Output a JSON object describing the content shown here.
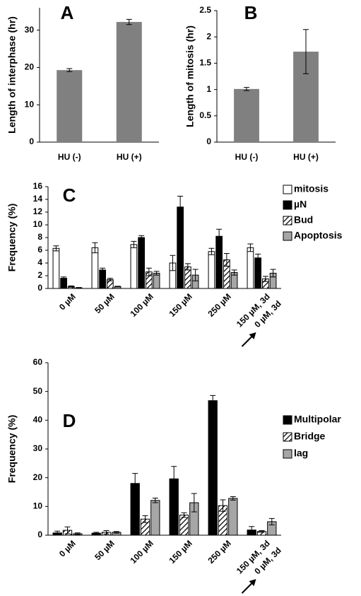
{
  "chart_data": [
    {
      "type": "bar",
      "title": "A",
      "y_label": "Length of interphase (hr)",
      "categories": [
        "HU (-)",
        "HU (+)"
      ],
      "series": [
        {
          "name": null,
          "color": "#808080",
          "values": [
            19.3,
            32.2
          ],
          "errors": [
            0.4,
            0.7
          ]
        }
      ],
      "ylim": [
        0,
        36
      ],
      "yticks": [
        0,
        10,
        20,
        30
      ]
    },
    {
      "type": "bar",
      "title": "B",
      "y_label": "Length of mitosis (hr)",
      "categories": [
        "HU (-)",
        "HU (+)"
      ],
      "series": [
        {
          "name": null,
          "color": "#808080",
          "values": [
            1.01,
            1.72
          ],
          "errors": [
            0.03,
            0.42
          ]
        }
      ],
      "ylim": [
        0,
        2.5
      ],
      "yticks": [
        0,
        0.5,
        1,
        1.5,
        2,
        2.5
      ]
    },
    {
      "type": "bar",
      "title": "C",
      "y_label": "Frequency (%)",
      "categories": [
        "0 µM",
        "50 µM",
        "100 µM",
        "150 µM",
        "250 µM",
        "150 µM, 3d"
      ],
      "arrow_label": "0 µM, 3d",
      "series": [
        {
          "name": "mitosis",
          "color": "#ffffff",
          "values": [
            6.3,
            6.4,
            6.9,
            4.0,
            5.8,
            6.4
          ],
          "errors": [
            0.4,
            0.8,
            0.5,
            1.2,
            0.5,
            0.6
          ]
        },
        {
          "name": "µN",
          "color": "#000000",
          "values": [
            1.6,
            2.9,
            8.0,
            12.8,
            8.2,
            4.8
          ],
          "errors": [
            0.2,
            0.3,
            0.3,
            1.7,
            1.1,
            0.6
          ]
        },
        {
          "name": "Bud",
          "color": "#ffffff",
          "hatch": true,
          "values": [
            0.3,
            1.4,
            2.6,
            3.4,
            4.5,
            1.5
          ],
          "errors": [
            0.1,
            0.2,
            0.6,
            0.5,
            1.0,
            0.4
          ]
        },
        {
          "name": "Apoptosis",
          "color": "#a6a6a6",
          "values": [
            0.1,
            0.3,
            2.4,
            2.1,
            2.5,
            2.4
          ],
          "errors": [
            0.05,
            0.05,
            0.3,
            0.9,
            0.4,
            0.6
          ]
        }
      ],
      "ylim": [
        0,
        16
      ],
      "yticks": [
        0,
        2,
        4,
        6,
        8,
        10,
        12,
        14,
        16
      ]
    },
    {
      "type": "bar",
      "title": "D",
      "y_label": "Frequency (%)",
      "categories": [
        "0 µM",
        "50 µM",
        "100 µM",
        "150 µM",
        "250 µM",
        "150 µM, 3d"
      ],
      "arrow_label": "0 µM, 3d",
      "series": [
        {
          "name": "Multipolar",
          "color": "#000000",
          "values": [
            0.8,
            0.7,
            18,
            19.6,
            46.8,
            1.8
          ],
          "errors": [
            0.6,
            0.3,
            3.5,
            4.3,
            1.8,
            1.2
          ]
        },
        {
          "name": "Bridge",
          "color": "#ffffff",
          "hatch": true,
          "values": [
            1.7,
            1.0,
            5.6,
            7.0,
            10.3,
            1.3
          ],
          "errors": [
            1.2,
            0.6,
            1.2,
            0.8,
            2.0,
            0.3
          ]
        },
        {
          "name": "lag",
          "color": "#a6a6a6",
          "values": [
            0.5,
            1.0,
            12.1,
            11.3,
            12.8,
            4.7
          ],
          "errors": [
            0.3,
            0.3,
            0.8,
            3.2,
            0.6,
            1.1
          ]
        }
      ],
      "ylim": [
        0,
        60
      ],
      "yticks": [
        0,
        10,
        20,
        30,
        40,
        50,
        60
      ]
    }
  ]
}
